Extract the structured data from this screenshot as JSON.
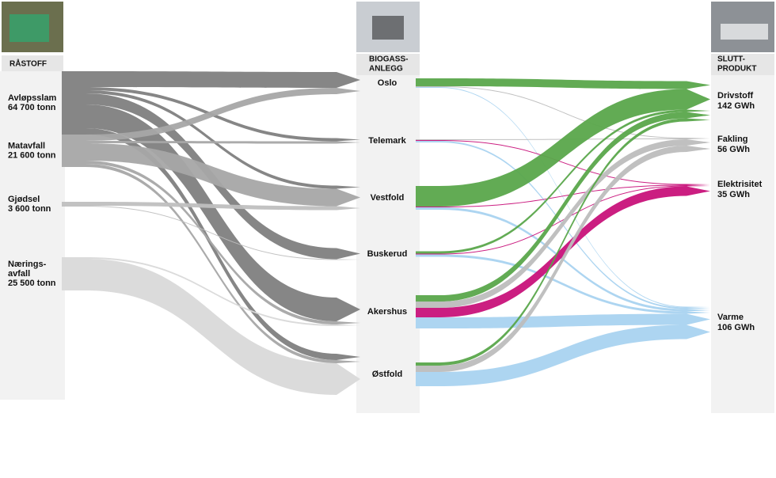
{
  "chart_data": {
    "type": "sankey",
    "headers": {
      "source": "RÅSTOFF",
      "plant": [
        "BIOGASS-",
        "ANLEGG"
      ],
      "product": [
        "SLUTT-",
        "PRODUKT"
      ]
    },
    "sources": [
      {
        "label": [
          "Avløpsslam"
        ],
        "amount": "64 700 tonn",
        "color": "#808080"
      },
      {
        "label": [
          "Matavfall"
        ],
        "amount": "21 600 tonn",
        "color": "#a6a6a6"
      },
      {
        "label": [
          "Gjødsel"
        ],
        "amount": "3 600 tonn",
        "color": "#bfbfbf"
      },
      {
        "label": [
          "Nærings-",
          "avfall"
        ],
        "amount": "25 500 tonn",
        "color": "#d9d9d9"
      }
    ],
    "plants": [
      "Oslo",
      "Telemark",
      "Vestfold",
      "Buskerud",
      "Akershus",
      "Østfold"
    ],
    "products": [
      {
        "label": "Drivstoff",
        "amount": "142 GWh",
        "color": "#5aa64b"
      },
      {
        "label": "Fakling",
        "amount": "56 GWh",
        "color": "#bdbdbd"
      },
      {
        "label": "Elektrisitet",
        "amount": "35 GWh",
        "color": "#c8127a"
      },
      {
        "label": "Varme",
        "amount": "106 GWh",
        "color": "#a9d3f0"
      }
    ],
    "source_links": [
      {
        "from": 0,
        "to": 0,
        "value": 20
      },
      {
        "from": 0,
        "to": 1,
        "value": 4
      },
      {
        "from": 0,
        "to": 2,
        "value": 4
      },
      {
        "from": 0,
        "to": 3,
        "value": 14
      },
      {
        "from": 0,
        "to": 4,
        "value": 30
      },
      {
        "from": 0,
        "to": 5,
        "value": 8
      },
      {
        "from": 1,
        "to": 0,
        "value": 8
      },
      {
        "from": 1,
        "to": 1,
        "value": 3
      },
      {
        "from": 1,
        "to": 2,
        "value": 22
      },
      {
        "from": 1,
        "to": 4,
        "value": 4
      },
      {
        "from": 1,
        "to": 5,
        "value": 4
      },
      {
        "from": 2,
        "to": 2,
        "value": 5
      },
      {
        "from": 2,
        "to": 3,
        "value": 1
      },
      {
        "from": 3,
        "to": 4,
        "value": 2
      },
      {
        "from": 3,
        "to": 5,
        "value": 40
      }
    ],
    "product_links": [
      {
        "from": 0,
        "to": 0,
        "value": 10
      },
      {
        "from": 0,
        "to": 1,
        "value": 1
      },
      {
        "from": 0,
        "to": 3,
        "value": 1
      },
      {
        "from": 1,
        "to": 1,
        "value": 1
      },
      {
        "from": 1,
        "to": 2,
        "value": 1
      },
      {
        "from": 1,
        "to": 3,
        "value": 2
      },
      {
        "from": 2,
        "to": 0,
        "value": 26
      },
      {
        "from": 2,
        "to": 2,
        "value": 1
      },
      {
        "from": 2,
        "to": 3,
        "value": 3
      },
      {
        "from": 3,
        "to": 0,
        "value": 3
      },
      {
        "from": 3,
        "to": 2,
        "value": 1
      },
      {
        "from": 3,
        "to": 3,
        "value": 3
      },
      {
        "from": 4,
        "to": 0,
        "value": 8
      },
      {
        "from": 4,
        "to": 1,
        "value": 8
      },
      {
        "from": 4,
        "to": 2,
        "value": 12
      },
      {
        "from": 4,
        "to": 3,
        "value": 14
      },
      {
        "from": 5,
        "to": 0,
        "value": 4
      },
      {
        "from": 5,
        "to": 1,
        "value": 8
      },
      {
        "from": 5,
        "to": 3,
        "value": 18
      }
    ]
  }
}
